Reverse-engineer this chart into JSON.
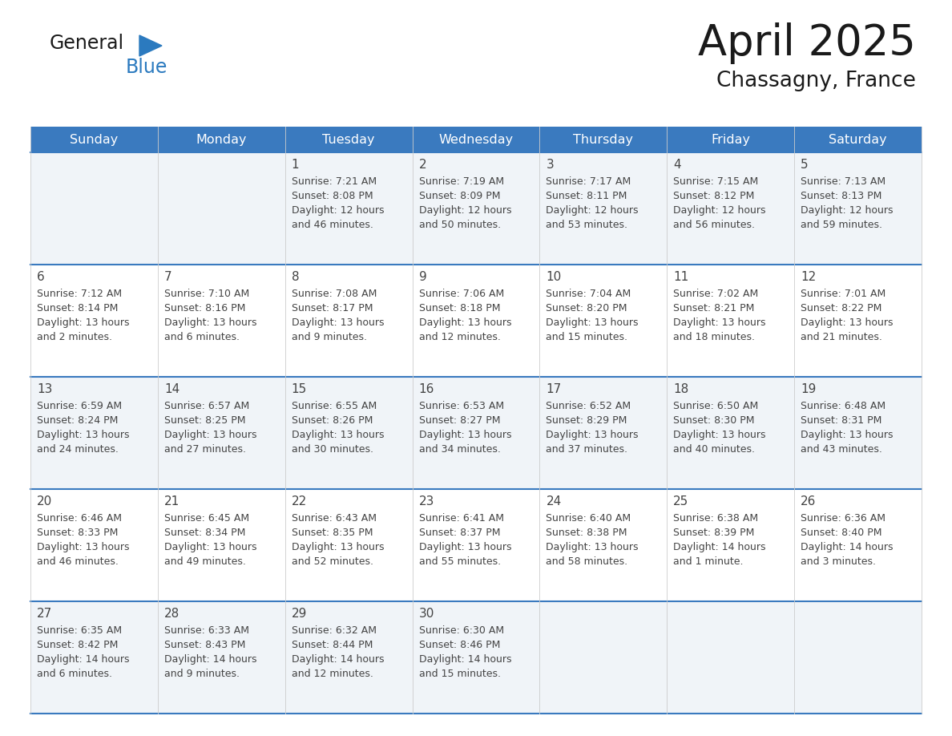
{
  "title": "April 2025",
  "subtitle": "Chassagny, France",
  "header_bg_color": "#3a7abf",
  "header_text_color": "#ffffff",
  "day_names": [
    "Sunday",
    "Monday",
    "Tuesday",
    "Wednesday",
    "Thursday",
    "Friday",
    "Saturday"
  ],
  "row_bg_even": "#f0f4f8",
  "row_bg_odd": "#ffffff",
  "cell_border_color": "#3a7abf",
  "text_color": "#444444",
  "logo_blue_color": "#2b7abf",
  "logo_black_color": "#1a1a1a",
  "days": [
    {
      "date": 1,
      "col": 2,
      "row": 0,
      "sunrise": "7:21 AM",
      "sunset": "8:08 PM",
      "daylight_l1": "Daylight: 12 hours",
      "daylight_l2": "and 46 minutes."
    },
    {
      "date": 2,
      "col": 3,
      "row": 0,
      "sunrise": "7:19 AM",
      "sunset": "8:09 PM",
      "daylight_l1": "Daylight: 12 hours",
      "daylight_l2": "and 50 minutes."
    },
    {
      "date": 3,
      "col": 4,
      "row": 0,
      "sunrise": "7:17 AM",
      "sunset": "8:11 PM",
      "daylight_l1": "Daylight: 12 hours",
      "daylight_l2": "and 53 minutes."
    },
    {
      "date": 4,
      "col": 5,
      "row": 0,
      "sunrise": "7:15 AM",
      "sunset": "8:12 PM",
      "daylight_l1": "Daylight: 12 hours",
      "daylight_l2": "and 56 minutes."
    },
    {
      "date": 5,
      "col": 6,
      "row": 0,
      "sunrise": "7:13 AM",
      "sunset": "8:13 PM",
      "daylight_l1": "Daylight: 12 hours",
      "daylight_l2": "and 59 minutes."
    },
    {
      "date": 6,
      "col": 0,
      "row": 1,
      "sunrise": "7:12 AM",
      "sunset": "8:14 PM",
      "daylight_l1": "Daylight: 13 hours",
      "daylight_l2": "and 2 minutes."
    },
    {
      "date": 7,
      "col": 1,
      "row": 1,
      "sunrise": "7:10 AM",
      "sunset": "8:16 PM",
      "daylight_l1": "Daylight: 13 hours",
      "daylight_l2": "and 6 minutes."
    },
    {
      "date": 8,
      "col": 2,
      "row": 1,
      "sunrise": "7:08 AM",
      "sunset": "8:17 PM",
      "daylight_l1": "Daylight: 13 hours",
      "daylight_l2": "and 9 minutes."
    },
    {
      "date": 9,
      "col": 3,
      "row": 1,
      "sunrise": "7:06 AM",
      "sunset": "8:18 PM",
      "daylight_l1": "Daylight: 13 hours",
      "daylight_l2": "and 12 minutes."
    },
    {
      "date": 10,
      "col": 4,
      "row": 1,
      "sunrise": "7:04 AM",
      "sunset": "8:20 PM",
      "daylight_l1": "Daylight: 13 hours",
      "daylight_l2": "and 15 minutes."
    },
    {
      "date": 11,
      "col": 5,
      "row": 1,
      "sunrise": "7:02 AM",
      "sunset": "8:21 PM",
      "daylight_l1": "Daylight: 13 hours",
      "daylight_l2": "and 18 minutes."
    },
    {
      "date": 12,
      "col": 6,
      "row": 1,
      "sunrise": "7:01 AM",
      "sunset": "8:22 PM",
      "daylight_l1": "Daylight: 13 hours",
      "daylight_l2": "and 21 minutes."
    },
    {
      "date": 13,
      "col": 0,
      "row": 2,
      "sunrise": "6:59 AM",
      "sunset": "8:24 PM",
      "daylight_l1": "Daylight: 13 hours",
      "daylight_l2": "and 24 minutes."
    },
    {
      "date": 14,
      "col": 1,
      "row": 2,
      "sunrise": "6:57 AM",
      "sunset": "8:25 PM",
      "daylight_l1": "Daylight: 13 hours",
      "daylight_l2": "and 27 minutes."
    },
    {
      "date": 15,
      "col": 2,
      "row": 2,
      "sunrise": "6:55 AM",
      "sunset": "8:26 PM",
      "daylight_l1": "Daylight: 13 hours",
      "daylight_l2": "and 30 minutes."
    },
    {
      "date": 16,
      "col": 3,
      "row": 2,
      "sunrise": "6:53 AM",
      "sunset": "8:27 PM",
      "daylight_l1": "Daylight: 13 hours",
      "daylight_l2": "and 34 minutes."
    },
    {
      "date": 17,
      "col": 4,
      "row": 2,
      "sunrise": "6:52 AM",
      "sunset": "8:29 PM",
      "daylight_l1": "Daylight: 13 hours",
      "daylight_l2": "and 37 minutes."
    },
    {
      "date": 18,
      "col": 5,
      "row": 2,
      "sunrise": "6:50 AM",
      "sunset": "8:30 PM",
      "daylight_l1": "Daylight: 13 hours",
      "daylight_l2": "and 40 minutes."
    },
    {
      "date": 19,
      "col": 6,
      "row": 2,
      "sunrise": "6:48 AM",
      "sunset": "8:31 PM",
      "daylight_l1": "Daylight: 13 hours",
      "daylight_l2": "and 43 minutes."
    },
    {
      "date": 20,
      "col": 0,
      "row": 3,
      "sunrise": "6:46 AM",
      "sunset": "8:33 PM",
      "daylight_l1": "Daylight: 13 hours",
      "daylight_l2": "and 46 minutes."
    },
    {
      "date": 21,
      "col": 1,
      "row": 3,
      "sunrise": "6:45 AM",
      "sunset": "8:34 PM",
      "daylight_l1": "Daylight: 13 hours",
      "daylight_l2": "and 49 minutes."
    },
    {
      "date": 22,
      "col": 2,
      "row": 3,
      "sunrise": "6:43 AM",
      "sunset": "8:35 PM",
      "daylight_l1": "Daylight: 13 hours",
      "daylight_l2": "and 52 minutes."
    },
    {
      "date": 23,
      "col": 3,
      "row": 3,
      "sunrise": "6:41 AM",
      "sunset": "8:37 PM",
      "daylight_l1": "Daylight: 13 hours",
      "daylight_l2": "and 55 minutes."
    },
    {
      "date": 24,
      "col": 4,
      "row": 3,
      "sunrise": "6:40 AM",
      "sunset": "8:38 PM",
      "daylight_l1": "Daylight: 13 hours",
      "daylight_l2": "and 58 minutes."
    },
    {
      "date": 25,
      "col": 5,
      "row": 3,
      "sunrise": "6:38 AM",
      "sunset": "8:39 PM",
      "daylight_l1": "Daylight: 14 hours",
      "daylight_l2": "and 1 minute."
    },
    {
      "date": 26,
      "col": 6,
      "row": 3,
      "sunrise": "6:36 AM",
      "sunset": "8:40 PM",
      "daylight_l1": "Daylight: 14 hours",
      "daylight_l2": "and 3 minutes."
    },
    {
      "date": 27,
      "col": 0,
      "row": 4,
      "sunrise": "6:35 AM",
      "sunset": "8:42 PM",
      "daylight_l1": "Daylight: 14 hours",
      "daylight_l2": "and 6 minutes."
    },
    {
      "date": 28,
      "col": 1,
      "row": 4,
      "sunrise": "6:33 AM",
      "sunset": "8:43 PM",
      "daylight_l1": "Daylight: 14 hours",
      "daylight_l2": "and 9 minutes."
    },
    {
      "date": 29,
      "col": 2,
      "row": 4,
      "sunrise": "6:32 AM",
      "sunset": "8:44 PM",
      "daylight_l1": "Daylight: 14 hours",
      "daylight_l2": "and 12 minutes."
    },
    {
      "date": 30,
      "col": 3,
      "row": 4,
      "sunrise": "6:30 AM",
      "sunset": "8:46 PM",
      "daylight_l1": "Daylight: 14 hours",
      "daylight_l2": "and 15 minutes."
    }
  ]
}
